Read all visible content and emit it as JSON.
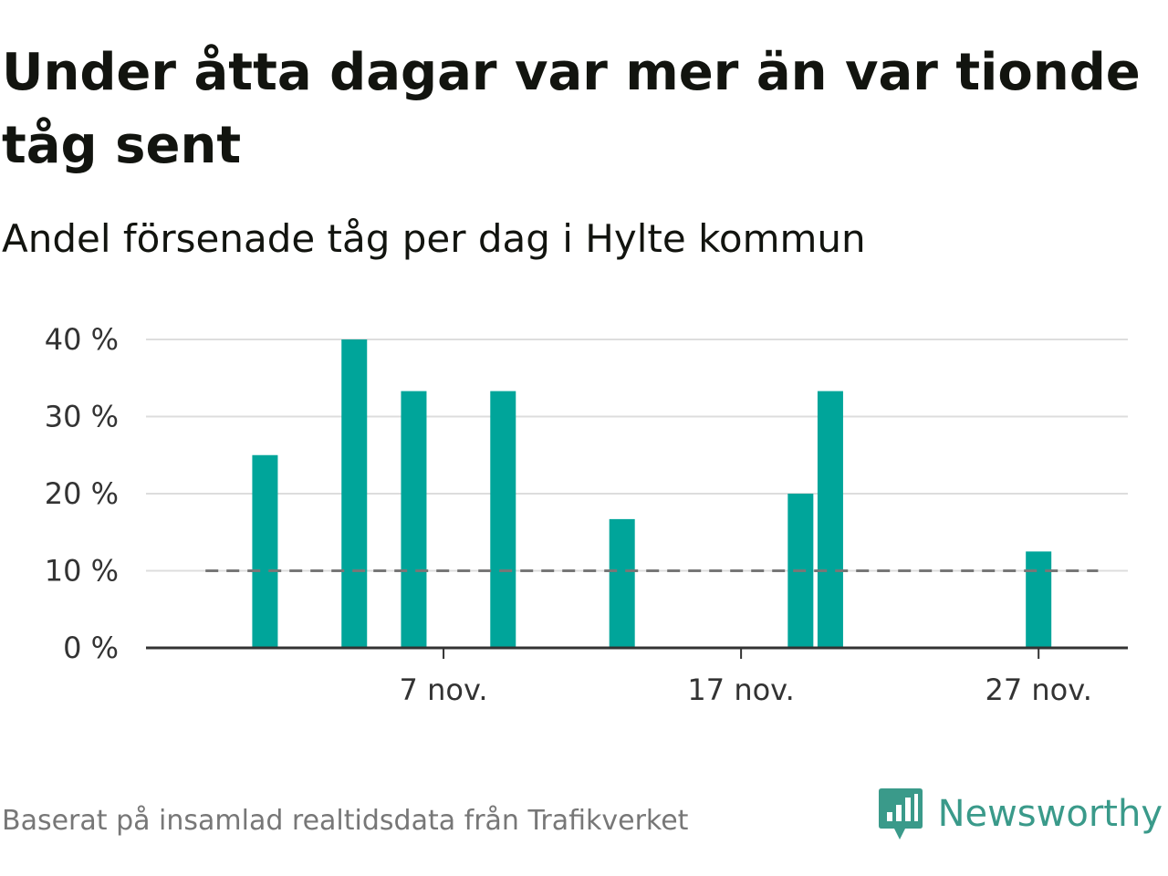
{
  "title": "Under åtta dagar var mer än var tionde tåg sent",
  "subtitle": "Andel försenade tåg per dag i Hylte kommun",
  "source": "Baserat på insamlad realtidsdata från Trafikverket",
  "brand": {
    "name": "Newsworthy",
    "icon": "newsworthy-logo-icon",
    "color": "#3a9a8a"
  },
  "colors": {
    "bar": "#00a59a",
    "reference_line": "#777777",
    "grid": "#dddddd",
    "axis": "#333333"
  },
  "chart_data": {
    "type": "bar",
    "title": "Under åtta dagar var mer än var tionde tåg sent",
    "subtitle": "Andel försenade tåg per dag i Hylte kommun",
    "xlabel": "",
    "ylabel": "",
    "x_range": [
      "2023-10-28",
      "2023-11-30"
    ],
    "ylim": [
      0,
      40
    ],
    "y_unit": "%",
    "y_ticks": [
      {
        "value": 0,
        "label": "0 %"
      },
      {
        "value": 10,
        "label": "10 %"
      },
      {
        "value": 20,
        "label": "20 %"
      },
      {
        "value": 30,
        "label": "30 %"
      },
      {
        "value": 40,
        "label": "40 %"
      }
    ],
    "x_ticks": [
      {
        "date": "2023-11-07",
        "label": "7 nov."
      },
      {
        "date": "2023-11-17",
        "label": "17 nov."
      },
      {
        "date": "2023-11-27",
        "label": "27 nov."
      }
    ],
    "grid": true,
    "reference_line": {
      "value": 10,
      "style": "dashed",
      "from": "2023-10-30",
      "to": "2023-11-29"
    },
    "series": [
      {
        "points": [
          {
            "date": "2023-11-01",
            "value": 25
          },
          {
            "date": "2023-11-04",
            "value": 40
          },
          {
            "date": "2023-11-06",
            "value": 33.3
          },
          {
            "date": "2023-11-09",
            "value": 33.3
          },
          {
            "date": "2023-11-13",
            "value": 16.7
          },
          {
            "date": "2023-11-19",
            "value": 20
          },
          {
            "date": "2023-11-20",
            "value": 33.3
          },
          {
            "date": "2023-11-27",
            "value": 12.5
          }
        ]
      }
    ]
  }
}
